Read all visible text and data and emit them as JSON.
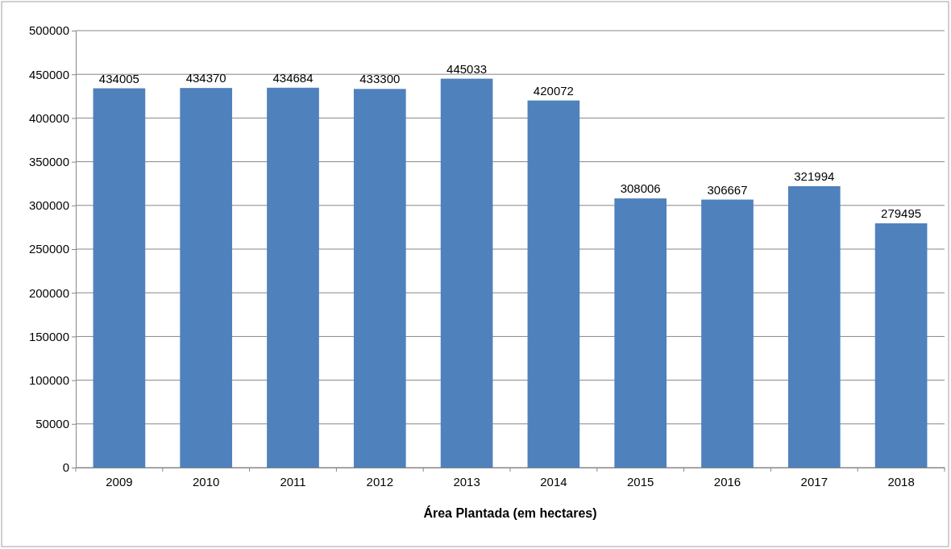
{
  "chart_data": {
    "type": "bar",
    "xlabel": "Área Plantada (em hectares)",
    "categories": [
      "2009",
      "2010",
      "2011",
      "2012",
      "2013",
      "2014",
      "2015",
      "2016",
      "2017",
      "2018"
    ],
    "values": [
      434005,
      434370,
      434684,
      433300,
      445033,
      420072,
      308006,
      306667,
      321994,
      279495
    ],
    "color": "#4f81bd",
    "ylim": [
      0,
      500000
    ],
    "yticks": [
      0,
      50000,
      100000,
      150000,
      200000,
      250000,
      300000,
      350000,
      400000,
      450000,
      500000
    ],
    "grid": "y",
    "data_labels": true
  }
}
